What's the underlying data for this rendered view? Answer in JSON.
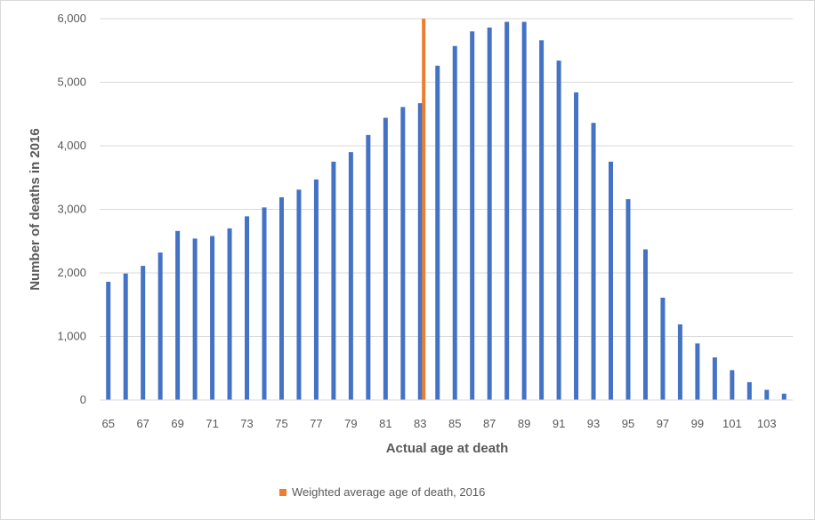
{
  "chart_data": {
    "type": "bar",
    "x": [
      65,
      66,
      67,
      68,
      69,
      70,
      71,
      72,
      73,
      74,
      75,
      76,
      77,
      78,
      79,
      80,
      81,
      82,
      83,
      84,
      85,
      86,
      87,
      88,
      89,
      90,
      91,
      92,
      93,
      94,
      95,
      96,
      97,
      98,
      99,
      100,
      101,
      102,
      103,
      104
    ],
    "x_tick_labels": [
      "65",
      "67",
      "69",
      "71",
      "73",
      "75",
      "77",
      "79",
      "81",
      "83",
      "85",
      "87",
      "89",
      "91",
      "93",
      "95",
      "97",
      "99",
      "101",
      "103"
    ],
    "series": [
      {
        "values": [
          1860,
          1990,
          2110,
          2320,
          2660,
          2540,
          2580,
          2700,
          2890,
          3030,
          3190,
          3310,
          3470,
          3750,
          3900,
          4170,
          4440,
          4610,
          4670,
          5260,
          5570,
          5800,
          5860,
          5950,
          5950,
          5660,
          5340,
          4840,
          4360,
          3750,
          3160,
          2370,
          1610,
          1190,
          890,
          670,
          470,
          280,
          160,
          100
        ],
        "color": "#4472c4"
      }
    ],
    "reference_line": {
      "x": 83.2,
      "label": "Weighted average age of death, 2016",
      "color": "#ed7d31"
    },
    "xlabel": "Actual age at death",
    "ylabel": "Number of deaths in 2016",
    "ylim": [
      0,
      6000
    ],
    "y_ticks": [
      "0",
      "1,000",
      "2,000",
      "3,000",
      "4,000",
      "5,000",
      "6,000"
    ],
    "grid": "horizontal",
    "legend_position": "bottom"
  }
}
